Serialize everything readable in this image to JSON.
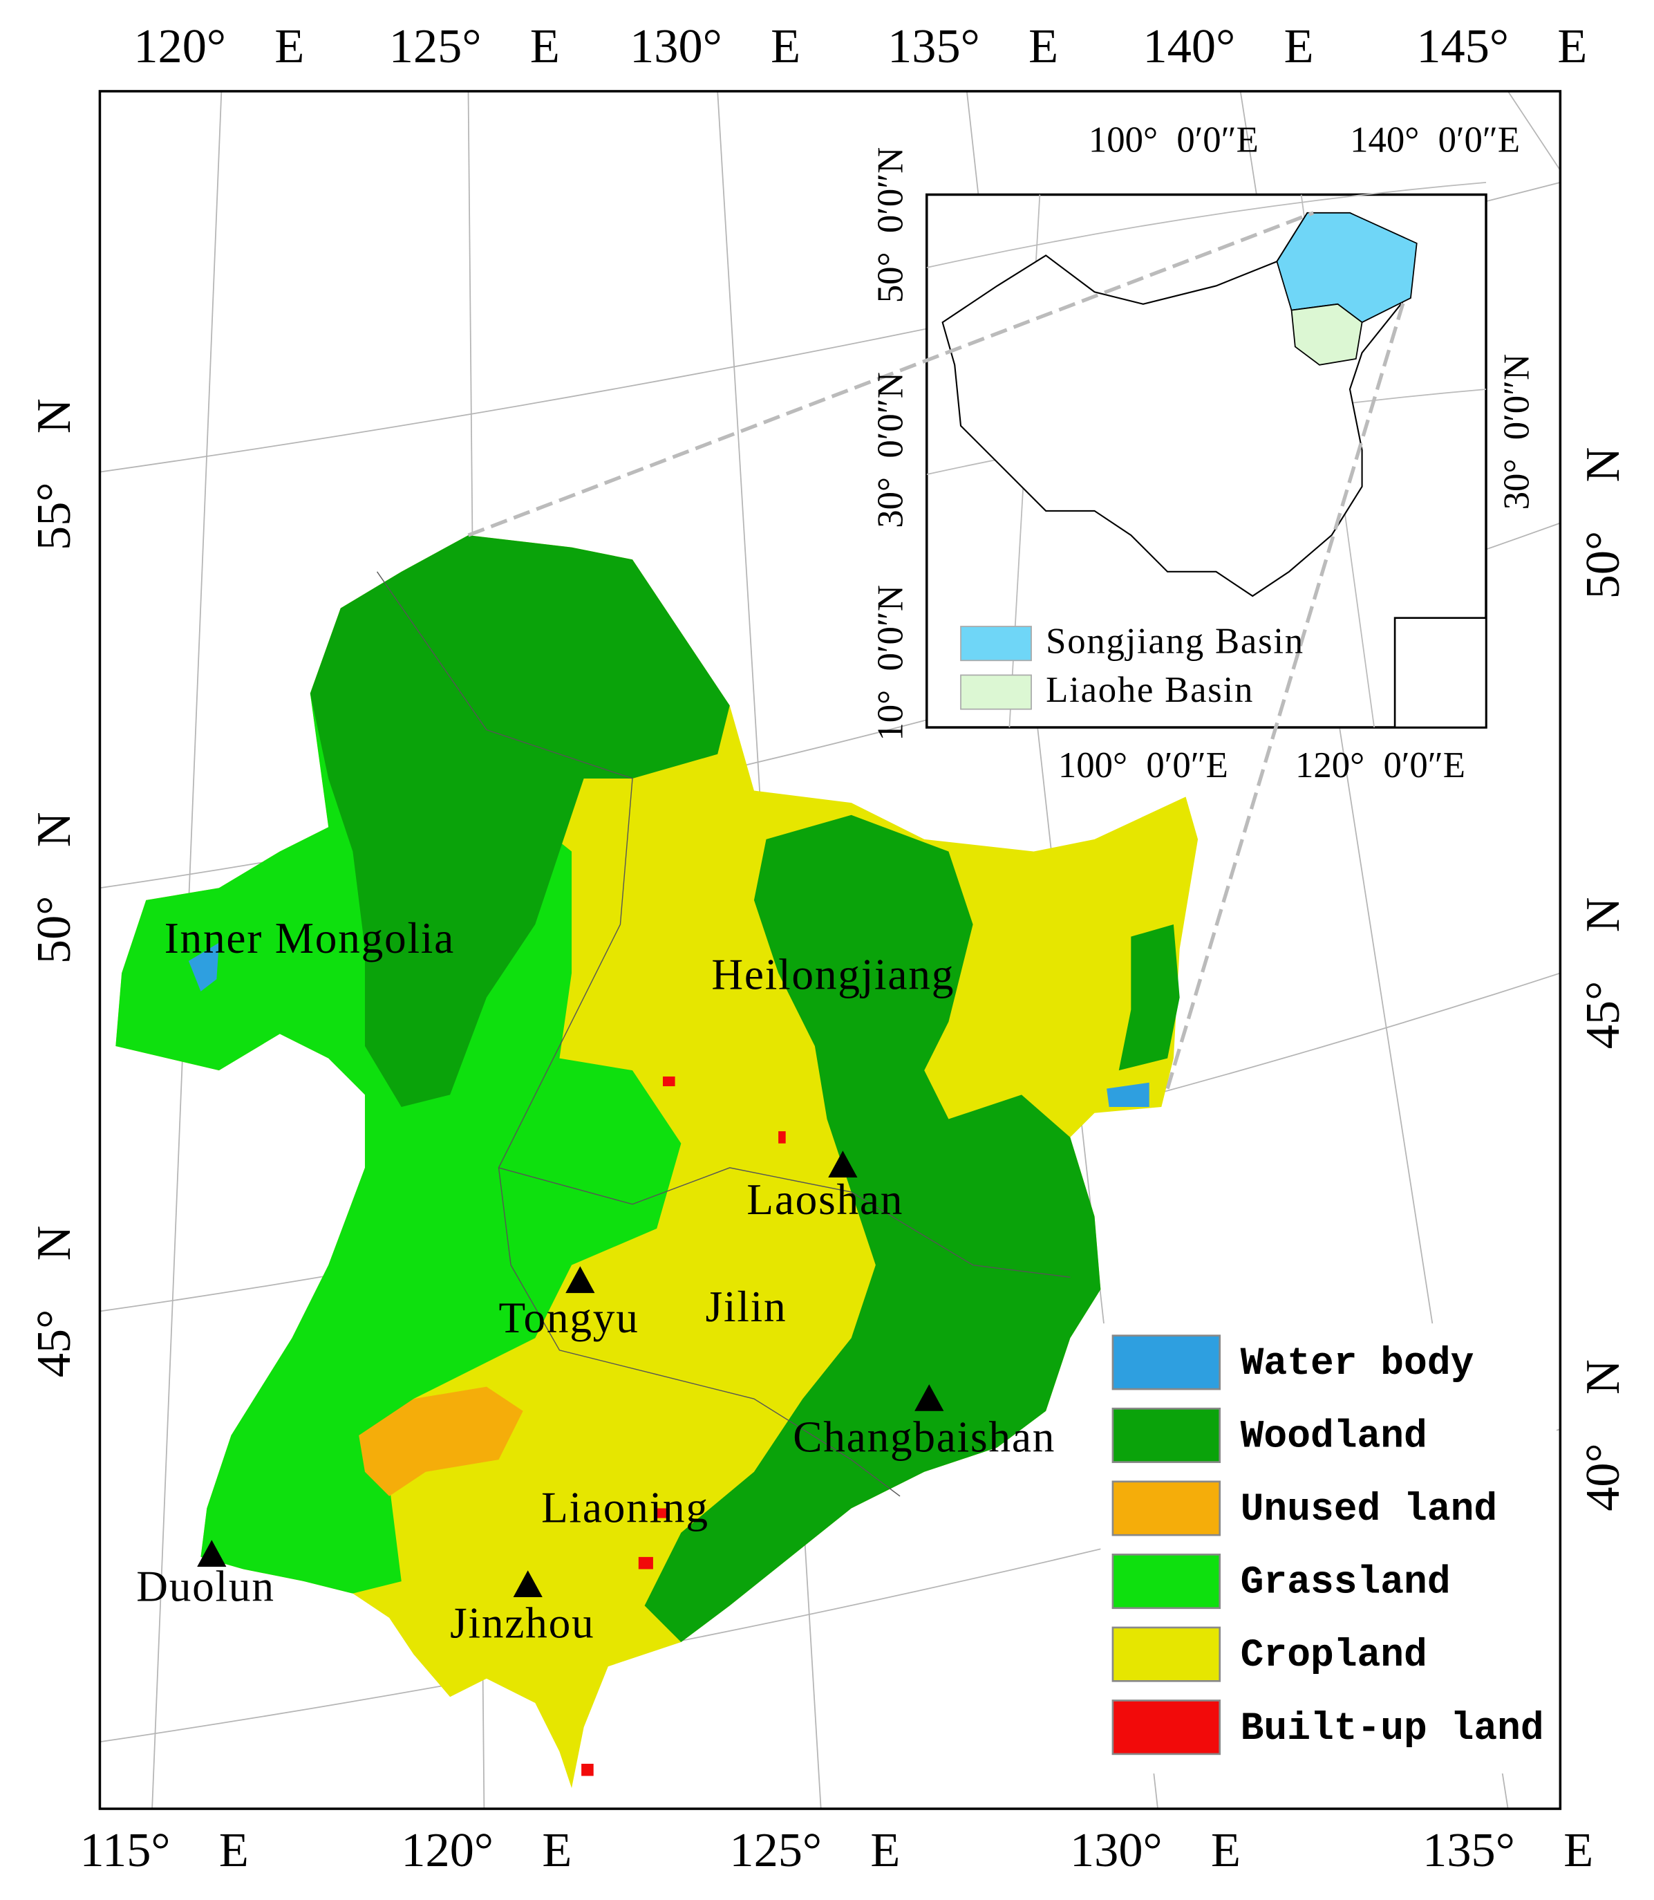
{
  "frame": {
    "top_labels": [
      "120° E",
      "125° E",
      "130° E",
      "135° E",
      "140° E",
      "145° E"
    ],
    "bottom_labels": [
      "115° E",
      "120° E",
      "125° E",
      "130° E",
      "135° E"
    ],
    "left_labels": [
      "55° N",
      "50° N",
      "45° N"
    ],
    "right_labels": [
      "50° N",
      "45° N",
      "40° N"
    ]
  },
  "inset": {
    "top_labels": [
      "100° 0′0″E",
      "140° 0′0″E"
    ],
    "bottom_labels": [
      "100° 0′0″E",
      "120° 0′0″E"
    ],
    "left_labels": [
      "50° 0′0″N",
      "30° 0′0″N",
      "10° 0′0″N"
    ],
    "right_labels": [
      "30° 0′0″N"
    ],
    "legend": [
      {
        "label": "Songjiang Basin",
        "color": "#6fd6f7"
      },
      {
        "label": "Liaohe Basin",
        "color": "#dcf7d3"
      }
    ]
  },
  "regions": [
    "Inner Mongolia",
    "Heilongjiang",
    "Jilin",
    "Liaoning"
  ],
  "stations": [
    "Laoshan",
    "Tongyu",
    "Changbaishan",
    "Duolun",
    "Jinzhou"
  ],
  "legend": [
    {
      "label": "Water body",
      "color": "#2e9fe0"
    },
    {
      "label": "Woodland",
      "color": "#0aa30a"
    },
    {
      "label": "Unused land",
      "color": "#f5ad0a"
    },
    {
      "label": "Grassland",
      "color": "#0ee00e"
    },
    {
      "label": "Cropland",
      "color": "#e6e600"
    },
    {
      "label": "Built-up land",
      "color": "#f20a0a"
    }
  ]
}
